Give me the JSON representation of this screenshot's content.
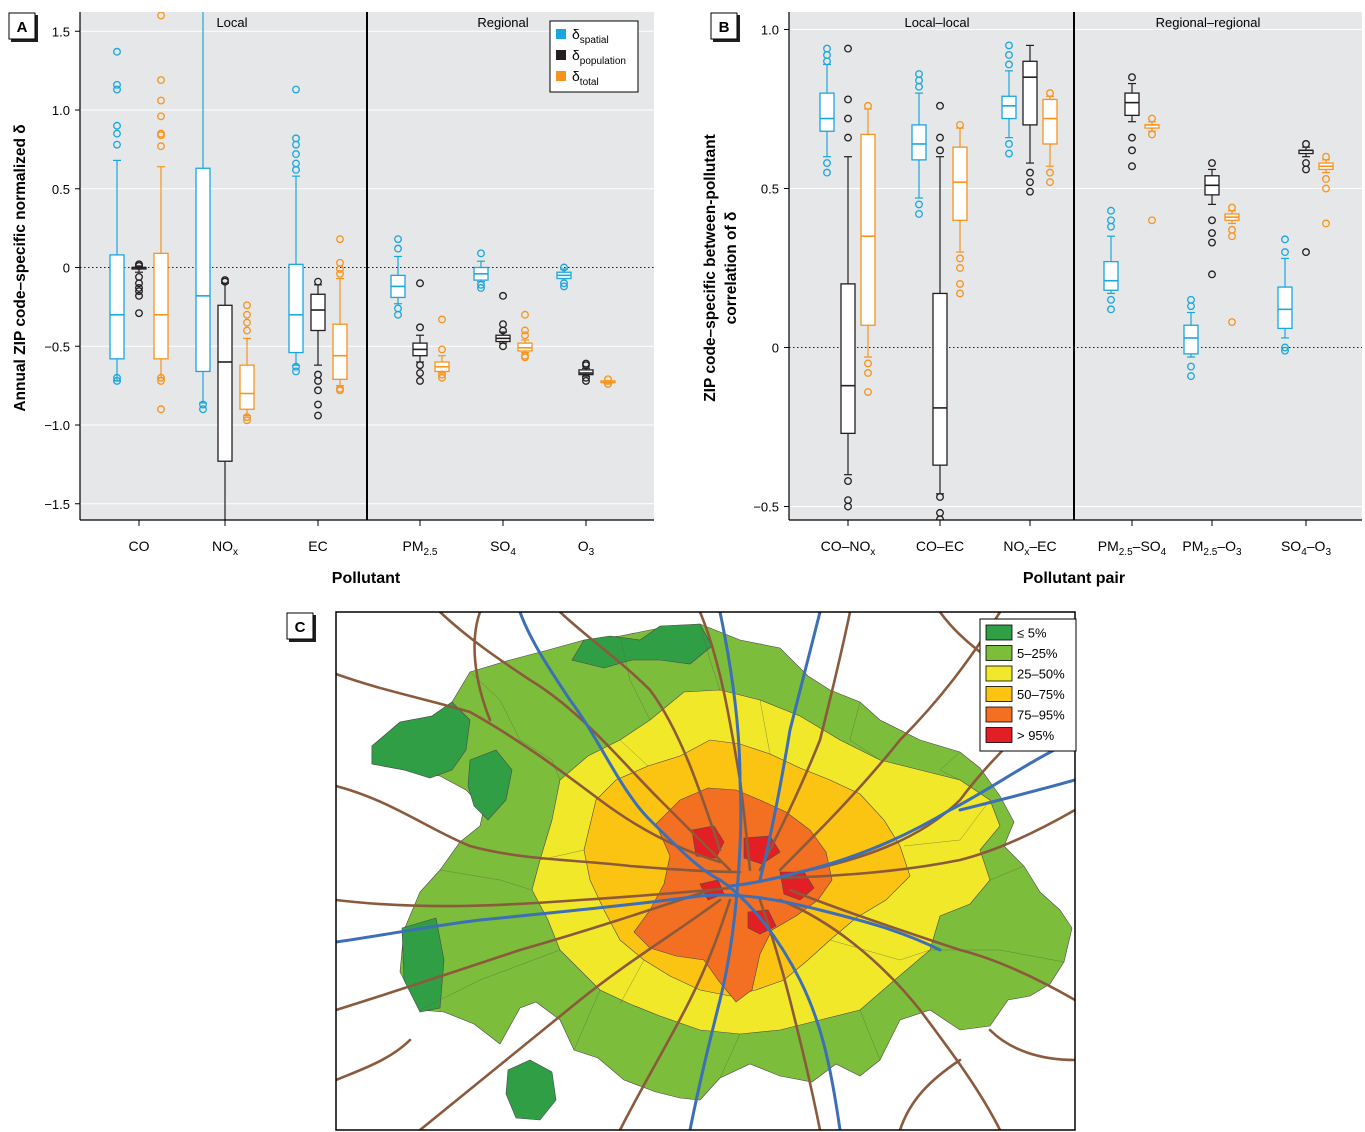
{
  "panels": {
    "A": {
      "letter": "A",
      "ylabel": "Annual ZIP code–specific normalized δ",
      "xlabel": "Pollutant",
      "section_left": "Local",
      "section_right": "Regional",
      "yticks": [
        "1.5",
        "1.0",
        "0.5",
        "0",
        "−0.5",
        "−1.0",
        "−1.5"
      ],
      "ytick_values": [
        1.5,
        1.0,
        0.5,
        0,
        -0.5,
        -1.0,
        -1.5
      ],
      "xcats": [
        {
          "main": "CO",
          "sub": ""
        },
        {
          "main": "NO",
          "sub": "x"
        },
        {
          "main": "EC",
          "sub": ""
        },
        {
          "main": "PM",
          "sub": "2.5"
        },
        {
          "main": "SO",
          "sub": "4"
        },
        {
          "main": "O",
          "sub": "3"
        }
      ],
      "legend": [
        {
          "main": "δ",
          "sub": "spatial"
        },
        {
          "main": "δ",
          "sub": "population"
        },
        {
          "main": "δ",
          "sub": "total"
        }
      ]
    },
    "B": {
      "letter": "B",
      "ylabel_line1": "ZIP code–specific between-pollutant",
      "ylabel_line2": "correlation of δ",
      "xlabel": "Pollutant pair",
      "section_left": "Local–local",
      "section_right": "Regional–regional",
      "yticks": [
        "1.0",
        "0.5",
        "0",
        "−0.5"
      ],
      "ytick_values": [
        1.0,
        0.5,
        0,
        -0.5
      ],
      "xcats": [
        [
          {
            "t": "CO–NO"
          },
          {
            "t": "x",
            "sub": true
          }
        ],
        [
          {
            "t": "CO–EC"
          }
        ],
        [
          {
            "t": "NO"
          },
          {
            "t": "x",
            "sub": true
          },
          {
            "t": "–EC"
          }
        ],
        [
          {
            "t": "PM"
          },
          {
            "t": "2.5",
            "sub": true
          },
          {
            "t": "–SO"
          },
          {
            "t": "4",
            "sub": true
          }
        ],
        [
          {
            "t": "PM"
          },
          {
            "t": "2.5",
            "sub": true
          },
          {
            "t": "–O"
          },
          {
            "t": "3",
            "sub": true
          }
        ],
        [
          {
            "t": "SO"
          },
          {
            "t": "4",
            "sub": true
          },
          {
            "t": "–O"
          },
          {
            "t": "3",
            "sub": true
          }
        ]
      ]
    },
    "C": {
      "letter": "C",
      "legend": [
        "≤ 5%",
        "5–25%",
        "25–50%",
        "50–75%",
        "75–95%",
        "> 95%"
      ]
    }
  },
  "colors": {
    "spatial": "#1aa7dd",
    "population": "#231f20",
    "total": "#f7941d",
    "panel_bg": "#e6e7e8",
    "grid": "#ffffff",
    "map_classes": [
      "#2f9e44",
      "#7cbd3b",
      "#f2e82a",
      "#fbc312",
      "#f36f21",
      "#e31e24"
    ],
    "roads": "#8b5a3c",
    "rivers": "#3d6fb6"
  },
  "chart_data": [
    {
      "type": "box",
      "panel": "A",
      "title": "",
      "xlabel": "Pollutant",
      "ylabel": "Annual ZIP code–specific normalized δ",
      "ylim": [
        -1.65,
        1.65
      ],
      "categories": [
        "CO",
        "NOx",
        "EC",
        "PM2.5",
        "SO4",
        "O3"
      ],
      "reference_line": 0,
      "grid": true,
      "legend_placement": "top-right",
      "series": [
        {
          "name": "δspatial",
          "color_key": "spatial",
          "boxes": [
            {
              "cat": 0,
              "lo": -0.72,
              "q1": -0.58,
              "med": -0.3,
              "q3": 0.08,
              "hi": 0.68,
              "out": [
                0.78,
                0.85,
                0.9,
                1.13,
                1.16,
                1.37,
                -0.7,
                -0.72
              ]
            },
            {
              "cat": 1,
              "lo": -0.86,
              "q1": -0.66,
              "med": -0.18,
              "q3": 0.63,
              "hi": 1.65,
              "out": [
                -0.87,
                -0.9
              ]
            },
            {
              "cat": 2,
              "lo": -0.62,
              "q1": -0.54,
              "med": -0.3,
              "q3": 0.02,
              "hi": 0.58,
              "out": [
                0.62,
                0.66,
                0.72,
                0.78,
                0.82,
                1.13,
                -0.63,
                -0.66
              ]
            },
            {
              "cat": 3,
              "lo": -0.23,
              "q1": -0.19,
              "med": -0.12,
              "q3": -0.05,
              "hi": 0.07,
              "out": [
                0.12,
                0.18,
                -0.26,
                -0.3
              ]
            },
            {
              "cat": 4,
              "lo": -0.09,
              "q1": -0.08,
              "med": -0.04,
              "q3": 0.0,
              "hi": 0.04,
              "out": [
                0.09,
                -0.11,
                -0.13
              ]
            },
            {
              "cat": 5,
              "lo": -0.07,
              "q1": -0.07,
              "med": -0.05,
              "q3": -0.03,
              "hi": -0.01,
              "out": [
                0.0,
                -0.1,
                -0.12
              ]
            }
          ]
        },
        {
          "name": "δpopulation",
          "color_key": "population",
          "boxes": [
            {
              "cat": 0,
              "lo": -0.03,
              "q1": 0.0,
              "med": 0.0,
              "q3": 0.0,
              "hi": 0.01,
              "out": [
                0.02,
                0.01,
                -0.06,
                -0.1,
                -0.13,
                -0.15,
                -0.18,
                -0.29
              ]
            },
            {
              "cat": 1,
              "lo": -1.65,
              "q1": -1.23,
              "med": -0.6,
              "q3": -0.24,
              "hi": -0.1,
              "out": [
                -0.08,
                -0.09
              ]
            },
            {
              "cat": 2,
              "lo": -0.62,
              "q1": -0.4,
              "med": -0.27,
              "q3": -0.17,
              "hi": -0.11,
              "out": [
                -0.09,
                -0.68,
                -0.72,
                -0.78,
                -0.87,
                -0.94
              ]
            },
            {
              "cat": 3,
              "lo": -0.6,
              "q1": -0.56,
              "med": -0.52,
              "q3": -0.48,
              "hi": -0.43,
              "out": [
                -0.1,
                -0.38,
                -0.62,
                -0.67,
                -0.72
              ]
            },
            {
              "cat": 4,
              "lo": -0.48,
              "q1": -0.47,
              "med": -0.45,
              "q3": -0.43,
              "hi": -0.41,
              "out": [
                -0.18,
                -0.36,
                -0.4,
                -0.5
              ]
            },
            {
              "cat": 5,
              "lo": -0.69,
              "q1": -0.68,
              "med": -0.67,
              "q3": -0.65,
              "hi": -0.64,
              "out": [
                -0.61,
                -0.62,
                -0.7,
                -0.72
              ]
            }
          ]
        },
        {
          "name": "δtotal",
          "color_key": "total",
          "boxes": [
            {
              "cat": 0,
              "lo": -0.7,
              "q1": -0.58,
              "med": -0.3,
              "q3": 0.09,
              "hi": 0.64,
              "out": [
                0.77,
                0.84,
                0.85,
                0.96,
                1.06,
                1.19,
                1.6,
                -0.7,
                -0.72,
                -0.9
              ]
            },
            {
              "cat": 1,
              "lo": -0.94,
              "q1": -0.9,
              "med": -0.8,
              "q3": -0.62,
              "hi": -0.45,
              "out": [
                -0.24,
                -0.3,
                -0.35,
                -0.4,
                -0.95,
                -0.97
              ]
            },
            {
              "cat": 2,
              "lo": -0.75,
              "q1": -0.71,
              "med": -0.56,
              "q3": -0.36,
              "hi": -0.07,
              "out": [
                0.18,
                0.03,
                -0.01,
                -0.04,
                -0.77,
                -0.78
              ]
            },
            {
              "cat": 3,
              "lo": -0.67,
              "q1": -0.66,
              "med": -0.63,
              "q3": -0.6,
              "hi": -0.56,
              "out": [
                -0.33,
                -0.52,
                -0.68,
                -0.7
              ]
            },
            {
              "cat": 4,
              "lo": -0.54,
              "q1": -0.53,
              "med": -0.51,
              "q3": -0.48,
              "hi": -0.46,
              "out": [
                -0.3,
                -0.4,
                -0.43,
                -0.56,
                -0.57
              ]
            },
            {
              "cat": 5,
              "lo": -0.74,
              "q1": -0.73,
              "med": -0.73,
              "q3": -0.72,
              "hi": -0.72,
              "out": [
                -0.71,
                -0.74
              ]
            }
          ]
        }
      ]
    },
    {
      "type": "box",
      "panel": "B",
      "title": "",
      "xlabel": "Pollutant pair",
      "ylabel": "ZIP code–specific between-pollutant correlation of δ",
      "ylim": [
        -0.54,
        1.06
      ],
      "categories": [
        "CO–NOx",
        "CO–EC",
        "NOx–EC",
        "PM2.5–SO4",
        "PM2.5–O3",
        "SO4–O3"
      ],
      "reference_line": 0,
      "grid": true,
      "series": [
        {
          "name": "δspatial",
          "color_key": "spatial",
          "boxes": [
            {
              "cat": 0,
              "lo": 0.6,
              "q1": 0.68,
              "med": 0.72,
              "q3": 0.8,
              "hi": 0.89,
              "out": [
                0.9,
                0.92,
                0.94,
                0.58,
                0.55
              ]
            },
            {
              "cat": 1,
              "lo": 0.47,
              "q1": 0.59,
              "med": 0.64,
              "q3": 0.7,
              "hi": 0.8,
              "out": [
                0.82,
                0.84,
                0.86,
                0.45,
                0.42
              ]
            },
            {
              "cat": 2,
              "lo": 0.66,
              "q1": 0.72,
              "med": 0.76,
              "q3": 0.79,
              "hi": 0.87,
              "out": [
                0.89,
                0.92,
                0.95,
                0.64,
                0.61
              ]
            },
            {
              "cat": 3,
              "lo": 0.17,
              "q1": 0.18,
              "med": 0.21,
              "q3": 0.27,
              "hi": 0.35,
              "out": [
                0.38,
                0.4,
                0.43,
                0.15,
                0.12
              ]
            },
            {
              "cat": 4,
              "lo": -0.03,
              "q1": -0.02,
              "med": 0.03,
              "q3": 0.07,
              "hi": 0.11,
              "out": [
                0.13,
                0.15,
                -0.06,
                -0.09
              ]
            },
            {
              "cat": 5,
              "lo": 0.03,
              "q1": 0.06,
              "med": 0.12,
              "q3": 0.19,
              "hi": 0.28,
              "out": [
                0.3,
                0.34,
                0.0,
                -0.01
              ]
            }
          ]
        },
        {
          "name": "δpopulation",
          "color_key": "population",
          "boxes": [
            {
              "cat": 0,
              "lo": -0.4,
              "q1": -0.27,
              "med": -0.12,
              "q3": 0.2,
              "hi": 0.6,
              "out": [
                0.94,
                0.78,
                0.72,
                0.66,
                -0.42,
                -0.48,
                -0.5
              ]
            },
            {
              "cat": 1,
              "lo": -0.46,
              "q1": -0.37,
              "med": -0.19,
              "q3": 0.17,
              "hi": 0.6,
              "out": [
                0.76,
                0.66,
                0.62,
                -0.47,
                -0.52,
                -0.54
              ]
            },
            {
              "cat": 2,
              "lo": 0.58,
              "q1": 0.7,
              "med": 0.85,
              "q3": 0.9,
              "hi": 0.95,
              "out": [
                0.55,
                0.52,
                0.49
              ]
            },
            {
              "cat": 3,
              "lo": 0.71,
              "q1": 0.73,
              "med": 0.77,
              "q3": 0.8,
              "hi": 0.83,
              "out": [
                0.85,
                0.66,
                0.62,
                0.57
              ]
            },
            {
              "cat": 4,
              "lo": 0.45,
              "q1": 0.48,
              "med": 0.51,
              "q3": 0.54,
              "hi": 0.56,
              "out": [
                0.58,
                0.4,
                0.36,
                0.33,
                0.23
              ]
            },
            {
              "cat": 5,
              "lo": 0.6,
              "q1": 0.61,
              "med": 0.62,
              "q3": 0.62,
              "hi": 0.63,
              "out": [
                0.64,
                0.58,
                0.56,
                0.3
              ]
            }
          ]
        },
        {
          "name": "δtotal",
          "color_key": "total",
          "boxes": [
            {
              "cat": 0,
              "lo": -0.03,
              "q1": 0.07,
              "med": 0.35,
              "q3": 0.67,
              "hi": 0.75,
              "out": [
                0.76,
                -0.05,
                -0.08,
                -0.14
              ]
            },
            {
              "cat": 1,
              "lo": 0.3,
              "q1": 0.4,
              "med": 0.52,
              "q3": 0.63,
              "hi": 0.69,
              "out": [
                0.7,
                0.28,
                0.25,
                0.2,
                0.17
              ]
            },
            {
              "cat": 2,
              "lo": 0.57,
              "q1": 0.64,
              "med": 0.72,
              "q3": 0.78,
              "hi": 0.79,
              "out": [
                0.8,
                0.55,
                0.52
              ]
            },
            {
              "cat": 3,
              "lo": 0.68,
              "q1": 0.69,
              "med": 0.7,
              "q3": 0.7,
              "hi": 0.71,
              "out": [
                0.72,
                0.67,
                0.4
              ]
            },
            {
              "cat": 4,
              "lo": 0.39,
              "q1": 0.4,
              "med": 0.41,
              "q3": 0.42,
              "hi": 0.43,
              "out": [
                0.44,
                0.37,
                0.35,
                0.08
              ]
            },
            {
              "cat": 5,
              "lo": 0.55,
              "q1": 0.56,
              "med": 0.57,
              "q3": 0.58,
              "hi": 0.59,
              "out": [
                0.6,
                0.53,
                0.5,
                0.39
              ]
            }
          ]
        }
      ]
    },
    {
      "type": "choropleth",
      "panel": "C",
      "legend": [
        "≤ 5%",
        "5–25%",
        "25–50%",
        "50–75%",
        "75–95%",
        "> 95%"
      ],
      "legend_placement": "top-right"
    }
  ]
}
